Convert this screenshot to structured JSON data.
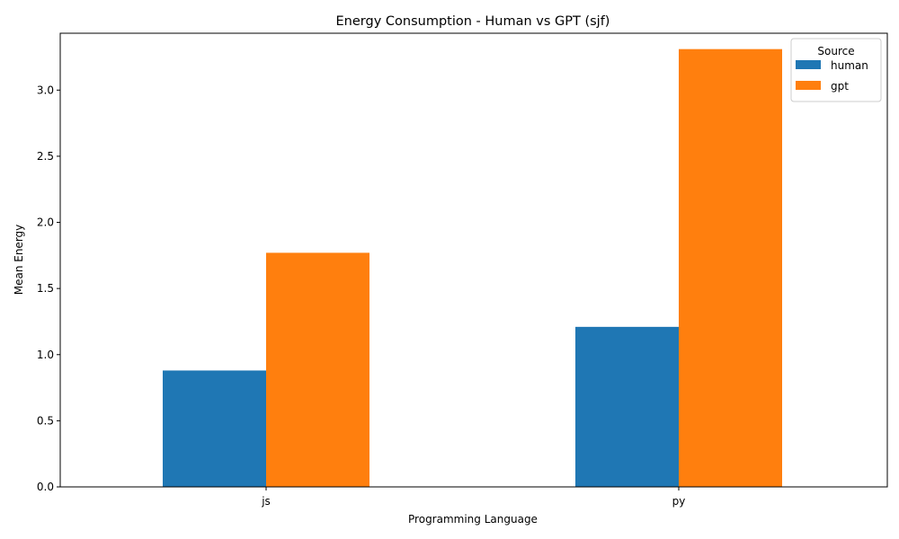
{
  "chart_data": {
    "type": "bar",
    "title": "Energy Consumption - Human vs GPT (sjf)",
    "xlabel": "Programming Language",
    "ylabel": "Mean Energy",
    "categories": [
      "js",
      "py"
    ],
    "series": [
      {
        "name": "human",
        "values": [
          0.88,
          1.21
        ],
        "color": "#1f77b4"
      },
      {
        "name": "gpt",
        "values": [
          1.77,
          3.31
        ],
        "color": "#ff7f0e"
      }
    ],
    "ylim": [
      0,
      3.43
    ],
    "yticks": [
      0.0,
      0.5,
      1.0,
      1.5,
      2.0,
      2.5,
      3.0
    ],
    "ytick_labels": [
      "0.0",
      "0.5",
      "1.0",
      "1.5",
      "2.0",
      "2.5",
      "3.0"
    ],
    "grid": false,
    "legend": {
      "title": "Source",
      "placement": "top-right"
    }
  }
}
